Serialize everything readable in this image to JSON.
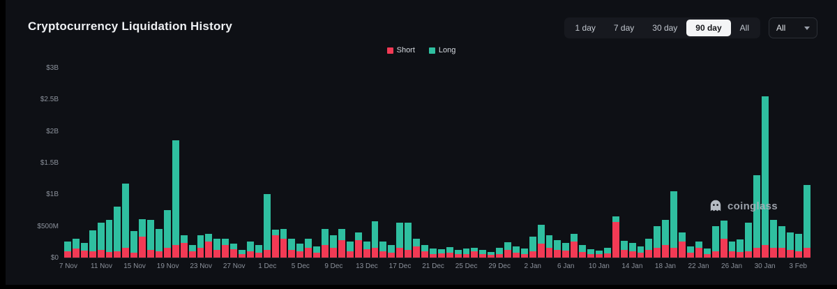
{
  "page": {
    "title": "Cryptocurrency Liquidation History"
  },
  "toolbar": {
    "ranges": [
      "1 day",
      "7 day",
      "30 day",
      "90 day",
      "All"
    ],
    "selected_range": "90 day",
    "symbol_filter_value": "All"
  },
  "legend": {
    "short_label": "Short",
    "long_label": "Long"
  },
  "watermark": "coinglass",
  "colors": {
    "short": "#f23a55",
    "long": "#2fbfa0",
    "background": "#0e1015",
    "selected_button_bg": "#f4f5f6",
    "axis_text": "#8b919b"
  },
  "chart_data": {
    "type": "bar",
    "stacked": true,
    "title": "Cryptocurrency Liquidation History",
    "value_unit": "million USD",
    "ylim": [
      0,
      3000
    ],
    "y_ticks": [
      "$0",
      "$500M",
      "$1B",
      "$1.5B",
      "$2B",
      "$2.5B",
      "$3B"
    ],
    "x_tick_every": 4,
    "x_tick_labels": [
      "7 Nov",
      "11 Nov",
      "15 Nov",
      "19 Nov",
      "23 Nov",
      "27 Nov",
      "1 Dec",
      "5 Dec",
      "9 Dec",
      "13 Dec",
      "17 Dec",
      "21 Dec",
      "25 Dec",
      "29 Dec",
      "2 Jan",
      "6 Jan",
      "10 Jan",
      "14 Jan",
      "18 Jan",
      "22 Jan",
      "26 Jan",
      "30 Jan",
      "3 Feb"
    ],
    "legend_position": "top-center",
    "grid": false,
    "categories": [
      "7 Nov",
      "8 Nov",
      "9 Nov",
      "10 Nov",
      "11 Nov",
      "12 Nov",
      "13 Nov",
      "14 Nov",
      "15 Nov",
      "16 Nov",
      "17 Nov",
      "18 Nov",
      "19 Nov",
      "20 Nov",
      "21 Nov",
      "22 Nov",
      "23 Nov",
      "24 Nov",
      "25 Nov",
      "26 Nov",
      "27 Nov",
      "28 Nov",
      "29 Nov",
      "30 Nov",
      "1 Dec",
      "2 Dec",
      "3 Dec",
      "4 Dec",
      "5 Dec",
      "6 Dec",
      "7 Dec",
      "8 Dec",
      "9 Dec",
      "10 Dec",
      "11 Dec",
      "12 Dec",
      "13 Dec",
      "14 Dec",
      "15 Dec",
      "16 Dec",
      "17 Dec",
      "18 Dec",
      "19 Dec",
      "20 Dec",
      "21 Dec",
      "22 Dec",
      "23 Dec",
      "24 Dec",
      "25 Dec",
      "26 Dec",
      "27 Dec",
      "28 Dec",
      "29 Dec",
      "30 Dec",
      "31 Dec",
      "1 Jan",
      "2 Jan",
      "3 Jan",
      "4 Jan",
      "5 Jan",
      "6 Jan",
      "7 Jan",
      "8 Jan",
      "9 Jan",
      "10 Jan",
      "11 Jan",
      "12 Jan",
      "13 Jan",
      "14 Jan",
      "15 Jan",
      "16 Jan",
      "17 Jan",
      "18 Jan",
      "19 Jan",
      "20 Jan",
      "21 Jan",
      "22 Jan",
      "23 Jan",
      "24 Jan",
      "25 Jan",
      "26 Jan",
      "27 Jan",
      "28 Jan",
      "29 Jan",
      "30 Jan",
      "31 Jan",
      "1 Feb",
      "2 Feb",
      "3 Feb",
      "4 Feb"
    ],
    "series": [
      {
        "name": "Short",
        "color": "#f23a55",
        "values": [
          100,
          140,
          110,
          100,
          120,
          90,
          100,
          150,
          80,
          330,
          120,
          100,
          150,
          200,
          230,
          100,
          150,
          250,
          120,
          200,
          130,
          60,
          100,
          80,
          120,
          350,
          300,
          120,
          100,
          150,
          80,
          200,
          150,
          280,
          100,
          280,
          130,
          150,
          100,
          80,
          150,
          120,
          180,
          100,
          60,
          70,
          80,
          50,
          60,
          100,
          60,
          40,
          60,
          120,
          80,
          60,
          100,
          220,
          150,
          120,
          110,
          250,
          90,
          60,
          50,
          70,
          560,
          120,
          100,
          80,
          120,
          150,
          200,
          150,
          250,
          80,
          150,
          60,
          100,
          300,
          100,
          90,
          100,
          150,
          200,
          160,
          150,
          120,
          100,
          150
        ]
      },
      {
        "name": "Long",
        "color": "#2fbfa0",
        "values": [
          150,
          160,
          120,
          330,
          430,
          510,
          700,
          1020,
          340,
          280,
          480,
          350,
          600,
          1650,
          120,
          100,
          200,
          130,
          180,
          100,
          90,
          60,
          150,
          120,
          880,
          90,
          150,
          180,
          120,
          150,
          100,
          250,
          200,
          170,
          150,
          120,
          120,
          420,
          150,
          120,
          400,
          430,
          120,
          100,
          80,
          60,
          90,
          70,
          80,
          60,
          60,
          50,
          100,
          120,
          100,
          80,
          230,
          300,
          200,
          160,
          120,
          130,
          110,
          70,
          60,
          80,
          90,
          150,
          130,
          100,
          180,
          350,
          400,
          900,
          150,
          100,
          100,
          80,
          400,
          280,
          150,
          200,
          450,
          1150,
          2350,
          440,
          350,
          280,
          280,
          1000
        ]
      }
    ]
  }
}
